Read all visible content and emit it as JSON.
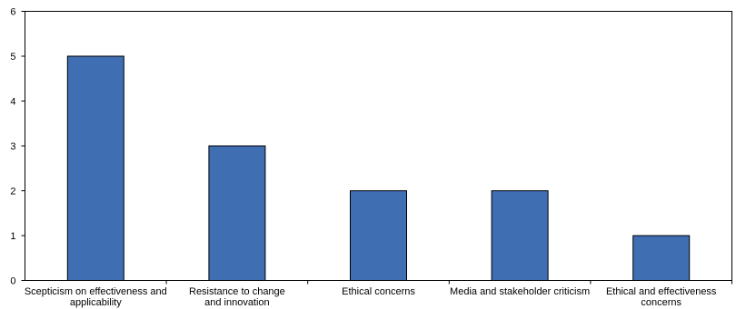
{
  "chart_data": {
    "type": "bar",
    "categories": [
      [
        "Scepticism on effectiveness and",
        "applicability"
      ],
      [
        "Resistance to change",
        "and innovation"
      ],
      [
        "Ethical concerns"
      ],
      [
        "Media and stakeholder criticism"
      ],
      [
        "Ethical and effectiveness",
        "concerns"
      ]
    ],
    "values": [
      5,
      3,
      2,
      2,
      1
    ],
    "ylim": [
      0,
      6
    ],
    "yticks": [
      "0",
      "1",
      "2",
      "3",
      "4",
      "5",
      "6"
    ],
    "title": "",
    "xlabel": "",
    "ylabel": "",
    "grid": false,
    "legend": "none"
  },
  "colors": {
    "bar": "#3f6eb3",
    "bar_stroke": "#000000",
    "axis": "#000000",
    "background": "#ffffff"
  }
}
